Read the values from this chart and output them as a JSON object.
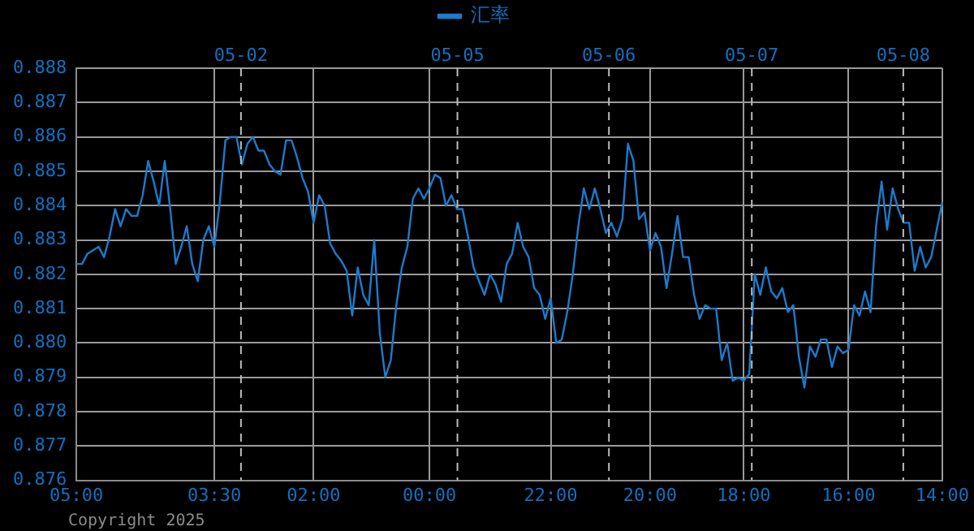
{
  "chart_data": {
    "type": "line",
    "legend": "top",
    "grid": true,
    "marker": "none",
    "line_style": "solid",
    "annotations": [
      "05-02",
      "05-05",
      "05-06",
      "05-07",
      "05-08",
      "Copyright 2025"
    ],
    "categories": [
      "05:00",
      null,
      null,
      null,
      null,
      null,
      null,
      null,
      null,
      null,
      null,
      null,
      null,
      null,
      null,
      null,
      null,
      null,
      null,
      null,
      null,
      null,
      null,
      null,
      null,
      "03:30",
      null,
      null,
      null,
      null,
      null,
      null,
      null,
      null,
      null,
      null,
      null,
      null,
      null,
      null,
      null,
      null,
      null,
      "02:00",
      null,
      null,
      null,
      null,
      null,
      null,
      null,
      null,
      null,
      null,
      null,
      null,
      null,
      null,
      null,
      null,
      null,
      null,
      null,
      null,
      "00:00",
      null,
      null,
      null,
      null,
      null,
      null,
      null,
      null,
      null,
      null,
      null,
      null,
      null,
      null,
      null,
      null,
      null,
      null,
      null,
      null,
      null,
      "22:00",
      null,
      null,
      null,
      null,
      null,
      null,
      null,
      null,
      null,
      null,
      null,
      null,
      null,
      null,
      null,
      null,
      null,
      "20:00",
      null,
      null,
      null,
      null,
      null,
      null,
      null,
      null,
      null,
      null,
      null,
      null,
      null,
      null,
      null,
      null,
      "18:00",
      null,
      null,
      null,
      null,
      null,
      null,
      null,
      null,
      null,
      null,
      null,
      null,
      null,
      null,
      null,
      null,
      null,
      null,
      "16:00",
      null,
      null,
      null,
      null,
      null,
      null,
      null,
      null,
      null,
      null,
      null,
      null,
      null,
      null,
      null,
      null,
      "14:00"
    ],
    "ylim": [
      0.876,
      0.888
    ],
    "yticks": [
      0.876,
      0.877,
      0.878,
      0.879,
      {
        "value": 0.88,
        "label": "0.880"
      },
      0.881,
      0.882,
      0.883,
      0.884,
      0.885,
      0.886,
      0.887,
      0.888
    ],
    "series": [
      {
        "name": "汇率",
        "color": "#1a7ccc",
        "values": [
          0.8823,
          0.8823,
          0.8826,
          0.8827,
          0.8828,
          0.8825,
          0.8831,
          0.8839,
          0.8834,
          0.8839,
          0.8837,
          0.8837,
          0.8843,
          0.8853,
          0.8847,
          0.884,
          0.8853,
          0.8839,
          0.8823,
          0.8828,
          0.8834,
          0.8823,
          0.8818,
          0.883,
          0.8834,
          0.8828,
          0.8841,
          0.8859,
          0.886,
          0.886,
          0.8852,
          0.8858,
          0.886,
          0.8856,
          0.8856,
          0.8852,
          0.885,
          0.8849,
          0.8859,
          0.8859,
          0.8854,
          0.8848,
          0.8844,
          0.8835,
          0.8843,
          0.884,
          0.8829,
          0.8826,
          0.8824,
          0.8821,
          0.8808,
          0.8822,
          0.8814,
          0.8811,
          0.883,
          0.8803,
          0.879,
          0.8795,
          0.8811,
          0.8822,
          0.8828,
          0.8842,
          0.8845,
          0.8842,
          0.8845,
          0.8849,
          0.8848,
          0.884,
          0.8843,
          0.8839,
          0.8839,
          0.8831,
          0.8822,
          0.8818,
          0.8814,
          0.882,
          0.8817,
          0.8812,
          0.8823,
          0.8826,
          0.8835,
          0.8828,
          0.8825,
          0.8816,
          0.8814,
          0.8807,
          0.8813,
          0.88,
          0.8801,
          0.8809,
          0.882,
          0.8834,
          0.8845,
          0.8839,
          0.8845,
          0.8839,
          0.8832,
          0.8835,
          0.8831,
          0.8836,
          0.8858,
          0.8853,
          0.8836,
          0.8838,
          0.8827,
          0.8832,
          0.8828,
          0.8816,
          0.8826,
          0.8837,
          0.8825,
          0.8825,
          0.8814,
          0.8807,
          0.8811,
          0.881,
          0.881,
          0.8795,
          0.88,
          0.8789,
          0.879,
          0.8789,
          0.8791,
          0.882,
          0.8814,
          0.8822,
          0.8815,
          0.8813,
          0.8816,
          0.8809,
          0.8811,
          0.8796,
          0.8787,
          0.8799,
          0.8796,
          0.8801,
          0.8801,
          0.8793,
          0.8799,
          0.8797,
          0.8798,
          0.8811,
          0.8808,
          0.8815,
          0.8809,
          0.8834,
          0.8847,
          0.8833,
          0.8845,
          0.8839,
          0.8835,
          0.8835,
          0.8821,
          0.8828,
          0.8822,
          0.8825,
          0.8833,
          0.8841
        ]
      }
    ]
  }
}
